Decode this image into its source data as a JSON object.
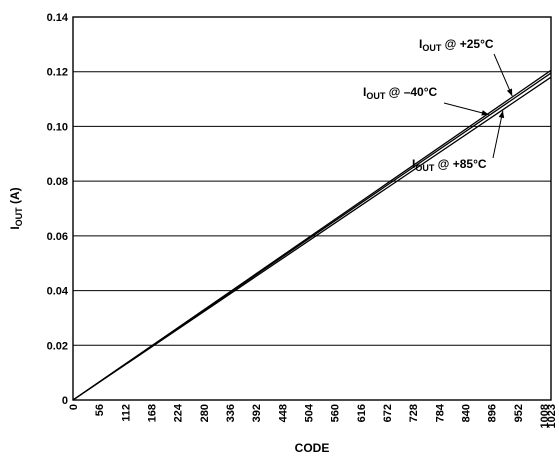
{
  "chart_data": {
    "type": "line",
    "title": "",
    "xlabel": "CODE",
    "ylabel": {
      "main": "I",
      "sub": "OUT",
      "unit": " (A)"
    },
    "xlim": [
      0,
      1023
    ],
    "ylim": [
      0,
      0.14
    ],
    "grid": {
      "horizontal": true,
      "vertical": false
    },
    "x_ticks": [
      0,
      56,
      112,
      168,
      224,
      280,
      336,
      392,
      448,
      504,
      560,
      616,
      672,
      728,
      784,
      840,
      896,
      952,
      1008,
      1023
    ],
    "y_ticks": [
      0,
      0.02,
      0.04,
      0.06,
      0.08,
      0.1,
      0.12,
      0.14
    ],
    "y_tick_labels": [
      "0",
      "0.02",
      "0.04",
      "0.06",
      "0.08",
      "0.10",
      "0.12",
      "0.14"
    ],
    "series": [
      {
        "x": [
          0,
          1023
        ],
        "y": [
          0,
          0.1205
        ]
      },
      {
        "x": [
          0,
          1023
        ],
        "y": [
          0,
          0.1195
        ]
      },
      {
        "x": [
          0,
          1023
        ],
        "y": [
          0,
          0.118
        ]
      }
    ],
    "annotations": [
      {
        "main": "I",
        "sub": "OUT",
        "rest": " @ +25°C"
      },
      {
        "main": "I",
        "sub": "OUT",
        "rest": " @ –40°C"
      },
      {
        "main": "I",
        "sub": "OUT",
        "rest": " @ +85°C"
      }
    ]
  }
}
